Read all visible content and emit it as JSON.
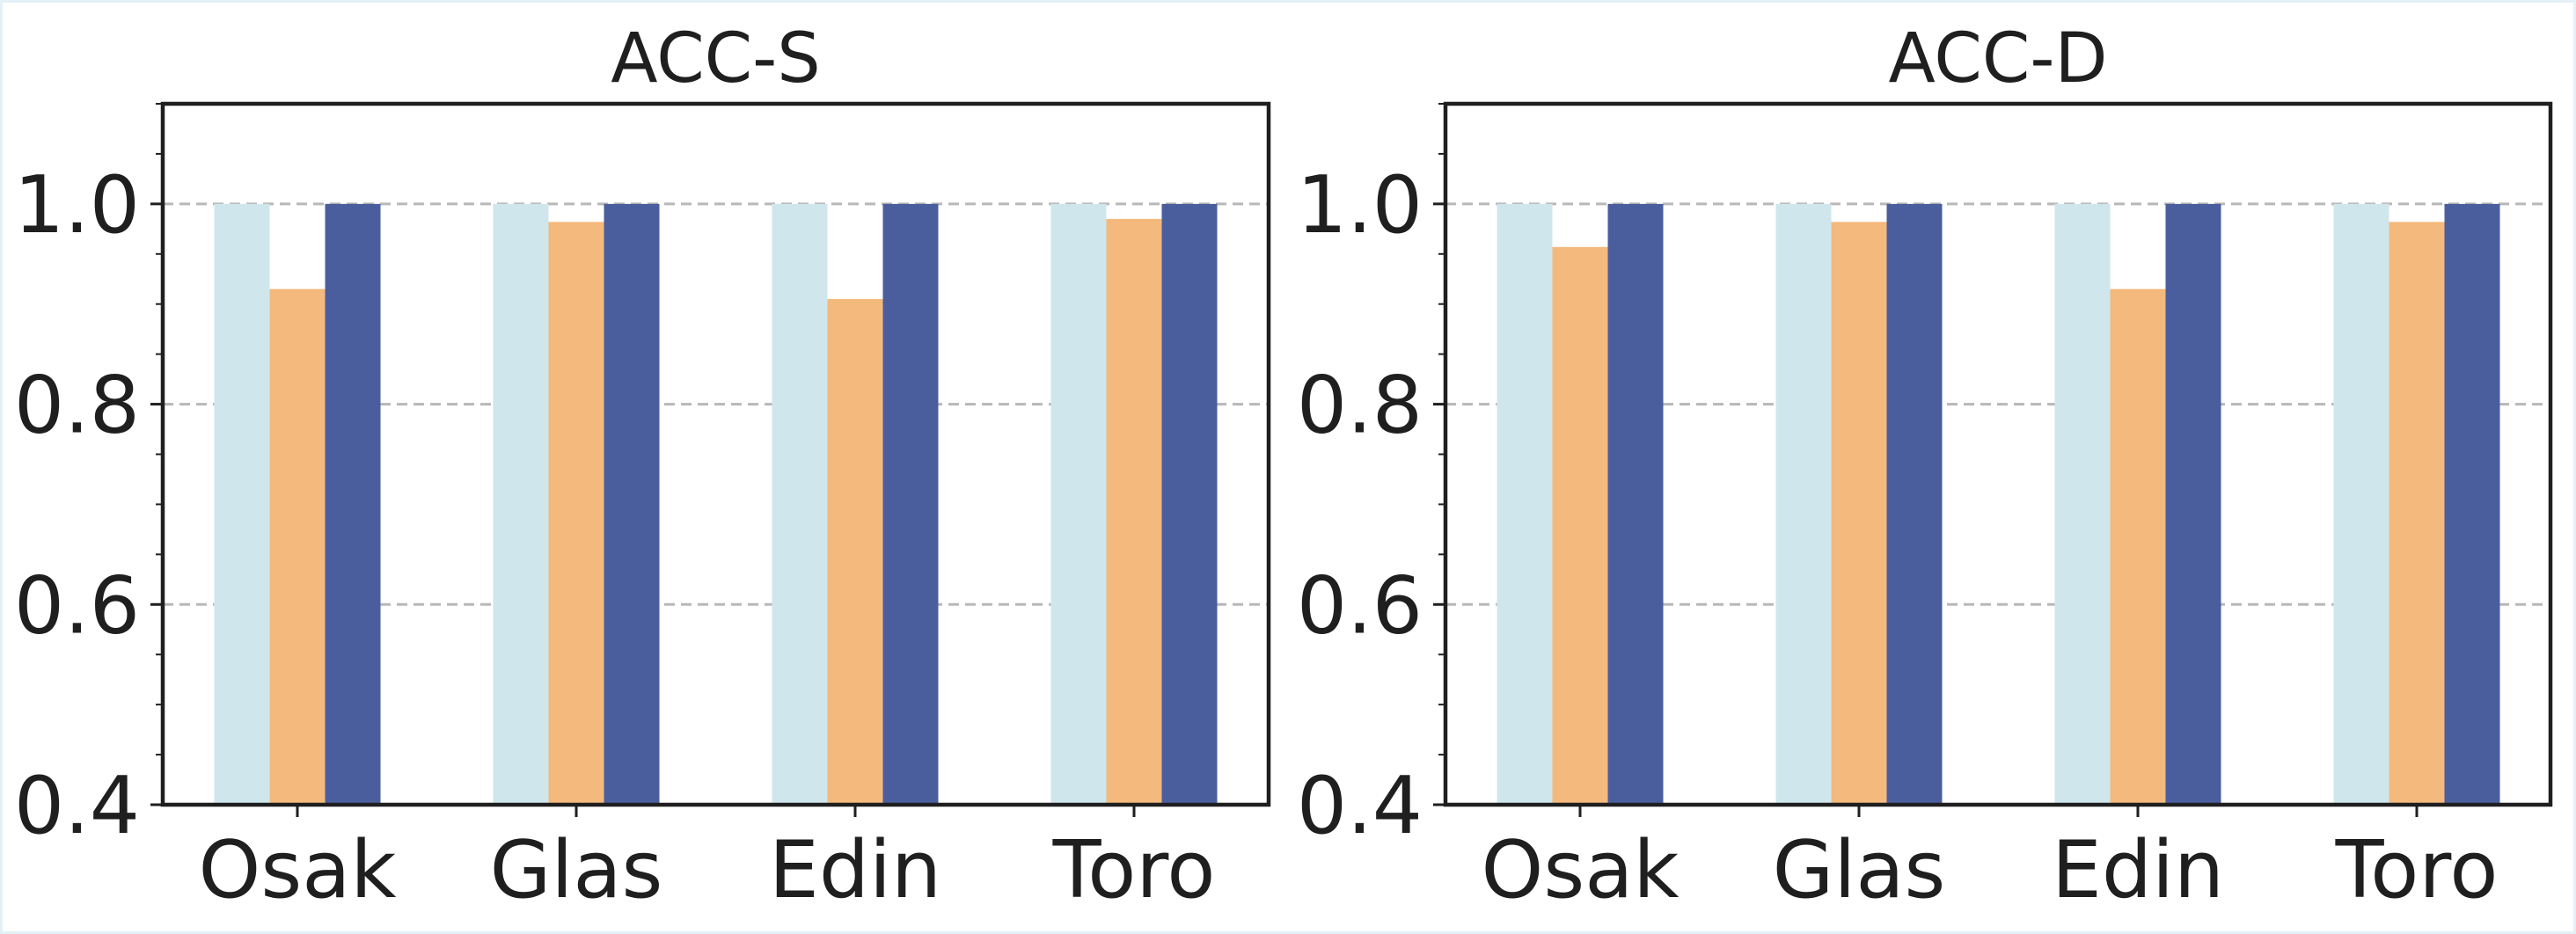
{
  "chart_data": [
    {
      "type": "bar",
      "title": "ACC-S",
      "xlabel": "",
      "ylabel": "",
      "categories": [
        "Osak",
        "Glas",
        "Edin",
        "Toro"
      ],
      "yticks": [
        "0.4",
        "0.6",
        "0.8",
        "1.0"
      ],
      "ylim": [
        0.4,
        1.1
      ],
      "grid": "y-dashed",
      "series": [
        {
          "values": [
            1.0,
            1.0,
            1.0,
            1.0
          ],
          "color": "#cfe6ec"
        },
        {
          "values": [
            0.915,
            0.982,
            0.905,
            0.985
          ],
          "color": "#f4b97c"
        },
        {
          "values": [
            1.0,
            1.0,
            1.0,
            1.0
          ],
          "color": "#4a5e9e"
        }
      ]
    },
    {
      "type": "bar",
      "title": "ACC-D",
      "xlabel": "",
      "ylabel": "",
      "categories": [
        "Osak",
        "Glas",
        "Edin",
        "Toro"
      ],
      "yticks": [
        "0.4",
        "0.6",
        "0.8",
        "1.0"
      ],
      "ylim": [
        0.4,
        1.1
      ],
      "grid": "y-dashed",
      "series": [
        {
          "values": [
            1.0,
            1.0,
            1.0,
            1.0
          ],
          "color": "#cfe6ec"
        },
        {
          "values": [
            0.957,
            0.982,
            0.915,
            0.982
          ],
          "color": "#f4b97c"
        },
        {
          "values": [
            1.0,
            1.0,
            1.0,
            1.0
          ],
          "color": "#4a5e9e"
        }
      ]
    }
  ]
}
